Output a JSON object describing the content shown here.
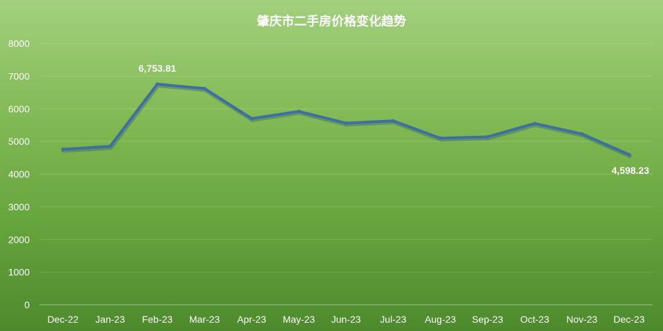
{
  "chart_data": {
    "type": "line",
    "title": "肇庆市二手房价格变化趋势",
    "categories": [
      "Dec-22",
      "Jan-23",
      "Feb-23",
      "Mar-23",
      "Apr-23",
      "May-23",
      "Jun-23",
      "Jul-23",
      "Aug-23",
      "Sep-23",
      "Oct-23",
      "Nov-23",
      "Dec-23"
    ],
    "series": [
      {
        "values": [
          4760,
          4850,
          6753.81,
          6620,
          5700,
          5920,
          5560,
          5630,
          5100,
          5140,
          5550,
          5230,
          4598.23
        ]
      }
    ],
    "ylim": [
      0,
      8000
    ],
    "yticks": [
      "0",
      "1000",
      "2000",
      "3000",
      "4000",
      "5000",
      "6000",
      "7000",
      "8000"
    ],
    "data_labels": [
      {
        "index": 2,
        "text": "6,753.81"
      },
      {
        "index": 12,
        "text": "4,598.23"
      }
    ],
    "grid": true,
    "legend": "none",
    "colors": {
      "line": "#3f6fa0",
      "background_top": "#a3d07e",
      "background_bottom": "#4d8a2d"
    }
  }
}
